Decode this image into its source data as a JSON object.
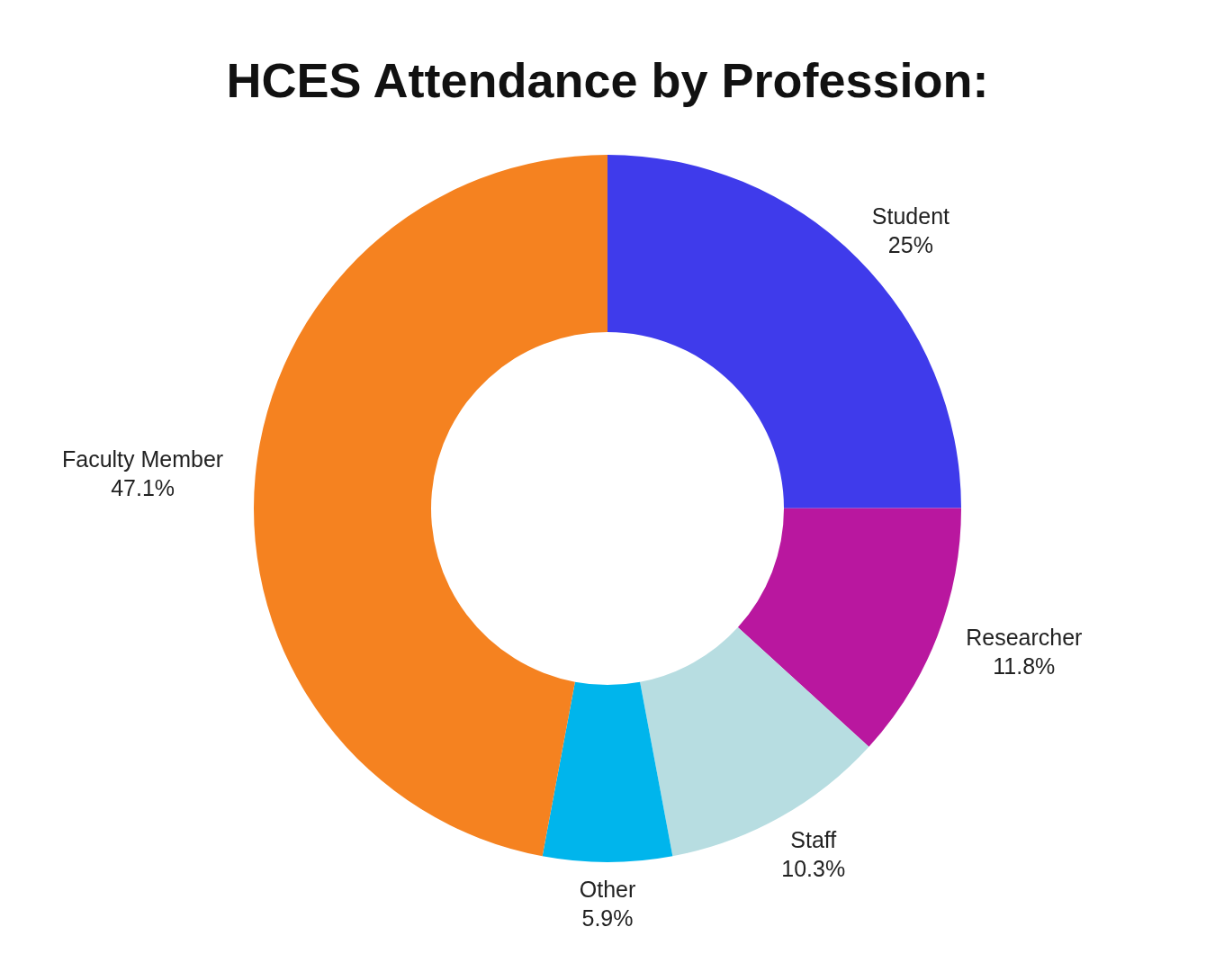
{
  "chart_data": {
    "type": "donut",
    "title": "HCES Attendance by Profession:",
    "categories": [
      "Student",
      "Researcher",
      "Staff",
      "Other",
      "Faculty Member"
    ],
    "values": [
      25,
      11.8,
      10.3,
      5.9,
      47.1
    ],
    "colors": [
      "#3f3beb",
      "#b9179f",
      "#b7dde1",
      "#00b5ec",
      "#f58220"
    ],
    "value_labels": [
      "25%",
      "11.8%",
      "10.3%",
      "5.9%",
      "47.1%"
    ]
  }
}
